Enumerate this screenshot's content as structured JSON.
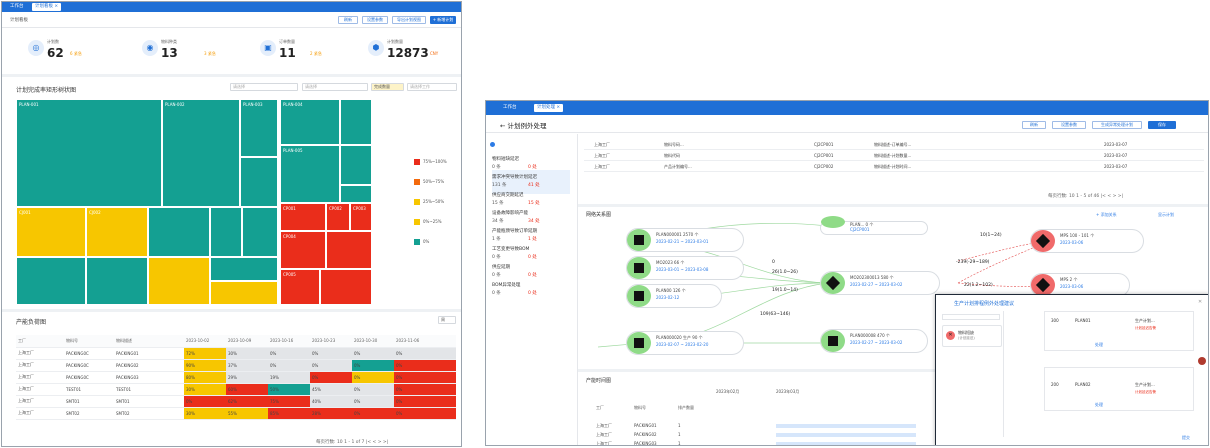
{
  "left": {
    "tabs": [
      "工作台",
      "计划看板 ×"
    ],
    "breadcrumb": "计划看板",
    "toolbar": [
      "刷新",
      "设置参数",
      "导出计划视图",
      "+ 新增计划"
    ],
    "stats": [
      {
        "label": "计划数",
        "value": "62",
        "sub": "6 紧急",
        "icon": "cube-icon"
      },
      {
        "label": "物料种类",
        "value": "13",
        "sub": "3 紧急",
        "icon": "shield-icon"
      },
      {
        "label": "订单数量",
        "value": "11",
        "sub": "2 紧急",
        "icon": "cart-icon"
      },
      {
        "label": "计划数量",
        "value": "12873",
        "sub": "CNY",
        "icon": "box-icon"
      }
    ],
    "treemap_title": "计划完成率矩形树状图",
    "filters": {
      "f1": "请选择",
      "f2": "请选择",
      "f3": "完成数量",
      "f4": "请选择工作"
    },
    "legend": [
      {
        "label": "75%~100%",
        "color": "#ea2d1b"
      },
      {
        "label": "50%~75%",
        "color": "#f36a0d"
      },
      {
        "label": "25%~50%",
        "color": "#f7c600"
      },
      {
        "label": "0%~25%",
        "color": "#f7c600"
      },
      {
        "label": "0%",
        "color": "#14a092"
      }
    ],
    "treemap_labels": [
      "PLAN-001",
      "PLAN-002",
      "PLAN-003",
      "PLAN-004",
      "PLAN-005",
      "CJ001",
      "CJ002",
      "CP001",
      "CP002",
      "CP003",
      "CP004",
      "CP005"
    ],
    "table_title": "产能负荷图",
    "table_select": "周",
    "table_headers": [
      "工厂",
      "物料号",
      "物料描述",
      "2023-10-02",
      "2023-10-09",
      "2023-10-16",
      "2023-10-23",
      "2023-10-30",
      "2023-11-06"
    ],
    "table_rows": [
      {
        "c": [
          "上海工厂",
          "PACKING0C",
          "PACKING01",
          "72%",
          "30%",
          "0%",
          "0%",
          "0%",
          "0%"
        ],
        "s": [
          "y",
          "g",
          "g",
          "g",
          "g",
          "g"
        ]
      },
      {
        "c": [
          "上海工厂",
          "PACKING0C",
          "PACKING02",
          "90%",
          "37%",
          "0%",
          "0%",
          "0%",
          "0%"
        ],
        "s": [
          "y",
          "g",
          "g",
          "g",
          "t",
          "r"
        ]
      },
      {
        "c": [
          "上海工厂",
          "PACKING0C",
          "PACKING03",
          "80%",
          "29%",
          "19%",
          "0%",
          "0%",
          "0%"
        ],
        "s": [
          "y",
          "g",
          "g",
          "r",
          "y",
          "r"
        ]
      },
      {
        "c": [
          "上海工厂",
          "TEST01",
          "TEST01",
          "30%",
          "60%",
          "50%",
          "45%",
          "0%",
          "0%"
        ],
        "s": [
          "y",
          "r",
          "t",
          "g",
          "g",
          "r"
        ]
      },
      {
        "c": [
          "上海工厂",
          "SMT01",
          "SMT01",
          "0%",
          "62%",
          "75%",
          "40%",
          "0%",
          "0%"
        ],
        "s": [
          "r",
          "r",
          "r",
          "g",
          "g",
          "r"
        ]
      },
      {
        "c": [
          "上海工厂",
          "SMT02",
          "SMT02",
          "30%",
          "55%",
          "85%",
          "28%",
          "0%",
          "0%"
        ],
        "s": [
          "y",
          "y",
          "r",
          "r",
          "r",
          "r"
        ]
      }
    ],
    "pager": "每页行数: 10    1 - 1 of 7    |<  <  >  >|"
  },
  "right": {
    "tabs": [
      "工作台",
      "计划处理 ×"
    ],
    "title": "← 计划例外处理",
    "toolbar": [
      "刷新",
      "设置参数",
      "生成异常处理计划",
      "保存"
    ],
    "side_list": [
      {
        "name": "物料短缺延迟",
        "count": "0 条",
        "warn": "0 处"
      },
      {
        "name": "需求冲突导致计划延迟",
        "count": "131 条",
        "warn": "41 处"
      },
      {
        "name": "供应商交期延迟",
        "count": "15 条",
        "warn": "15 处"
      },
      {
        "name": "设备故障影响产能",
        "count": "34 条",
        "warn": "34 处"
      },
      {
        "name": "产能瓶颈导致订单延期",
        "count": "1 条",
        "warn": "1 处"
      },
      {
        "name": "工艺变更导致BOM",
        "count": "0 条",
        "warn": "0 处"
      },
      {
        "name": "供应延期",
        "count": "0 条",
        "warn": "0 处"
      },
      {
        "name": "BOM异常处理",
        "count": "0 条",
        "warn": "0 处"
      }
    ],
    "top_table": [
      [
        "上海工厂",
        "物料号码...",
        "CJ2CP001",
        "物料描述-订单编号...",
        "2023-03-07"
      ],
      [
        "上海工厂",
        "物料代码",
        "CJ2CP001",
        "物料描述-计划数量...",
        "2023-03-07"
      ],
      [
        "上海工厂",
        "产品计划编号...",
        "CJ2CP002",
        "物料描述-计划时间...",
        "2023-03-07"
      ]
    ],
    "top_pager": "每页行数: 10    1 - 5 of 46    |<  <  >  >|",
    "network_title": "网络关系图",
    "network_actions": [
      "+ 添加关系",
      "显示计划"
    ],
    "nodes": [
      {
        "t1": "PLAN000001 2570 个",
        "t2": "2023-02-21 ~ 2023-03-01"
      },
      {
        "t1": "MO2023 66 个",
        "t2": "2023-03-01 ~ 2023-03-08"
      },
      {
        "t1": "PLAN00 126 个",
        "t2": "2023-02-12"
      },
      {
        "t1": "PLAN000020 生产 90 个",
        "t2": "2023-02-07 ~ 2023-02-20"
      },
      {
        "t1": "PLAN... 0 个",
        "t2": "CJ2CP001"
      },
      {
        "t1": "MO202300013 580 个",
        "t2": "2023-02-27 ~ 2023-03-02"
      },
      {
        "t1": "PLAN000008 470 个",
        "t2": "2023-02-27 ~ 2023-03-02"
      },
      {
        "t1": "MPS 100 - 101 个",
        "t2": "2023-03-06"
      },
      {
        "t1": "MPS 2 个",
        "t2": "2023-03-06"
      }
    ],
    "edge_labels": [
      "0",
      "26(1.0~26)",
      "19(1.0~14)",
      "109(63~146)",
      "-239(-29~189)",
      "22(1.2~102)",
      "10(1~24)"
    ],
    "gantt_title": "产能时间图",
    "gantt_headers": [
      "工厂",
      "物料号",
      "排产数量",
      "2023年02月",
      "2023年03月"
    ],
    "gantt_rows": [
      [
        "上海工厂",
        "PACKING01",
        "1"
      ],
      [
        "上海工厂",
        "PACKING02",
        "1"
      ],
      [
        "上海工厂",
        "PACKING03",
        "1"
      ]
    ],
    "dialog": {
      "title": "生产计划排程例外处理建议",
      "left_item": "物料短缺",
      "left_sub": "(计划延迟)",
      "note": "计划延迟告警",
      "blocks": [
        {
          "cols": [
            "300",
            "PLAN01",
            "生产计划..."
          ],
          "link": "处理"
        },
        {
          "cols": [
            "200",
            "PLAN02",
            "生产计划..."
          ],
          "link": "处理"
        }
      ],
      "footer": "提交"
    }
  }
}
